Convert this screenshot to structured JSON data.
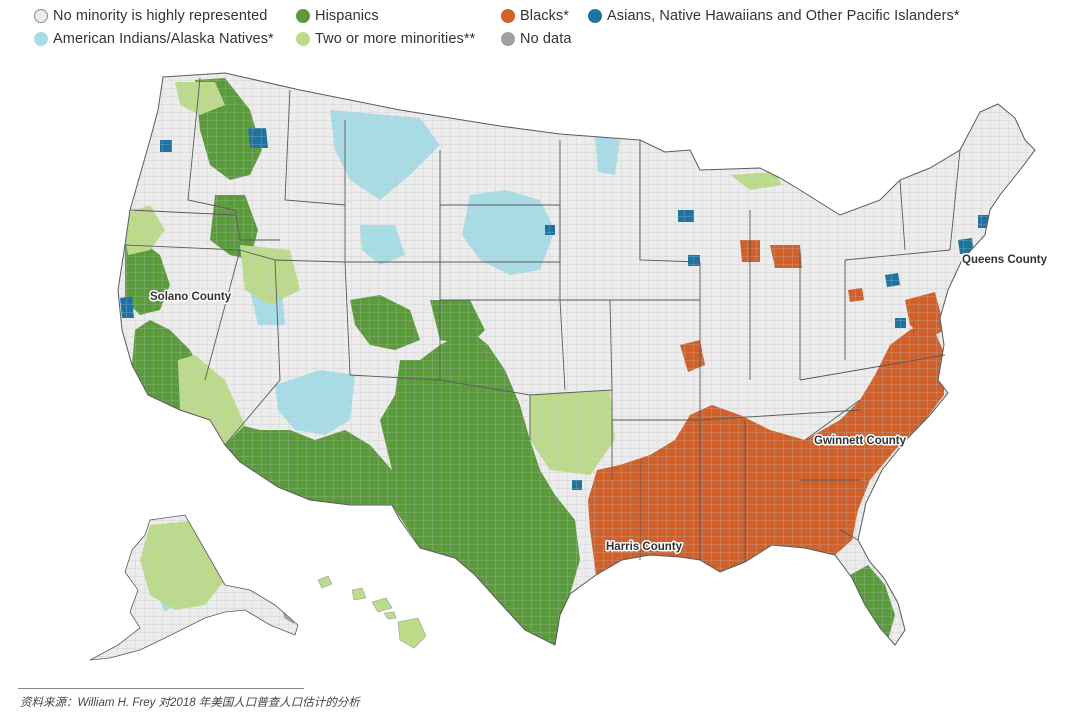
{
  "colors": {
    "none": "#ececec",
    "hispanic": "#5a9c3c",
    "black": "#d2602a",
    "asian": "#1f73a0",
    "native": "#a6dde7",
    "two_plus": "#bcdc8a",
    "no_data": "#a0a0a0",
    "border": "#9a9a9a",
    "state_border": "#5a5a5a"
  },
  "legend": [
    {
      "key": "none",
      "label": "No minority is highly represented"
    },
    {
      "key": "hispanic",
      "label": "Hispanics"
    },
    {
      "key": "black",
      "label": "Blacks*"
    },
    {
      "key": "asian",
      "label": "Asians, Native Hawaiians and Other Pacific Islanders*"
    },
    {
      "key": "native",
      "label": "American Indians/Alaska Natives*"
    },
    {
      "key": "two_plus",
      "label": "Two or more minorities**"
    },
    {
      "key": "no_data",
      "label": "No data"
    }
  ],
  "county_labels": [
    {
      "id": "solano",
      "text": "Solano County"
    },
    {
      "id": "queens",
      "text": "Queens County"
    },
    {
      "id": "gwinnett",
      "text": "Gwinnett County"
    },
    {
      "id": "harris",
      "text": "Harris County"
    }
  ],
  "source": "资料来源：William H. Frey 对2018 年美国人口普查人口估计的分析"
}
